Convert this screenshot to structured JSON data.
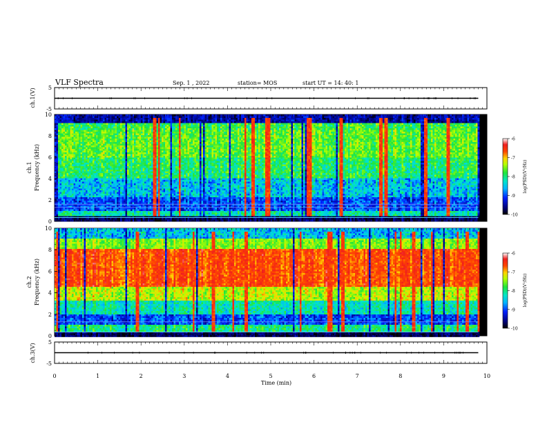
{
  "header": {
    "title": "VLF Spectra",
    "date": "Sep. 1 , 2022",
    "station": "station= MOS",
    "start": "start UT = 14: 40: 1"
  },
  "chart_data": [
    {
      "type": "line",
      "ylabel": "ch.1(V)",
      "ylim": [
        -5,
        5
      ],
      "yticks": [
        5,
        -5
      ],
      "x": [
        0,
        10
      ],
      "series": [
        {
          "values": [
            0,
            0
          ]
        }
      ]
    },
    {
      "type": "heatmap",
      "ylabel_line1": "ch.1",
      "ylabel_line2": "Frequency (kHz)",
      "ylim": [
        0,
        10
      ],
      "yticks": [
        0,
        2,
        4,
        6,
        8,
        10
      ],
      "xlim": [
        0,
        10
      ],
      "data_extent_min": 9.8,
      "colorbar": {
        "label": "log(PSD)(V²/Hz)",
        "range": [
          -10,
          -6
        ],
        "ticks": [
          -6,
          -7,
          -8,
          -9,
          -10
        ]
      },
      "features": {
        "dominant_band_khz": [
          2,
          9
        ],
        "black_band_top_khz": [
          9.2,
          10
        ],
        "horizontal_lines_khz": [
          0.35,
          1.3,
          1.6
        ]
      }
    },
    {
      "type": "heatmap",
      "ylabel_line1": "ch.2",
      "ylabel_line2": "Frequency (kHz)",
      "ylim": [
        0,
        10
      ],
      "yticks": [
        0,
        2,
        4,
        6,
        8,
        10
      ],
      "xlim": [
        0,
        10
      ],
      "data_extent_min": 9.8,
      "colorbar": {
        "label": "log(PSD)(V²/Hz)",
        "range": [
          -10,
          -6
        ],
        "ticks": [
          -6,
          -7,
          -8,
          -9,
          -10
        ]
      },
      "features": {
        "dominant_band_khz": [
          4,
          8
        ],
        "horizontal_lines_khz": [
          0.35,
          1.3
        ]
      }
    },
    {
      "type": "line",
      "ylabel": "ch.3(V)",
      "ylim": [
        -5,
        5
      ],
      "yticks": [
        5,
        -5
      ],
      "x": [
        0,
        10
      ],
      "series": [
        {
          "values": [
            0,
            0
          ]
        }
      ]
    }
  ],
  "xaxis": {
    "label": "Time (min)",
    "range": [
      0,
      10
    ],
    "ticks": [
      "0",
      "1",
      "2",
      "3",
      "4",
      "5",
      "6",
      "7",
      "8",
      "9",
      "10"
    ]
  }
}
